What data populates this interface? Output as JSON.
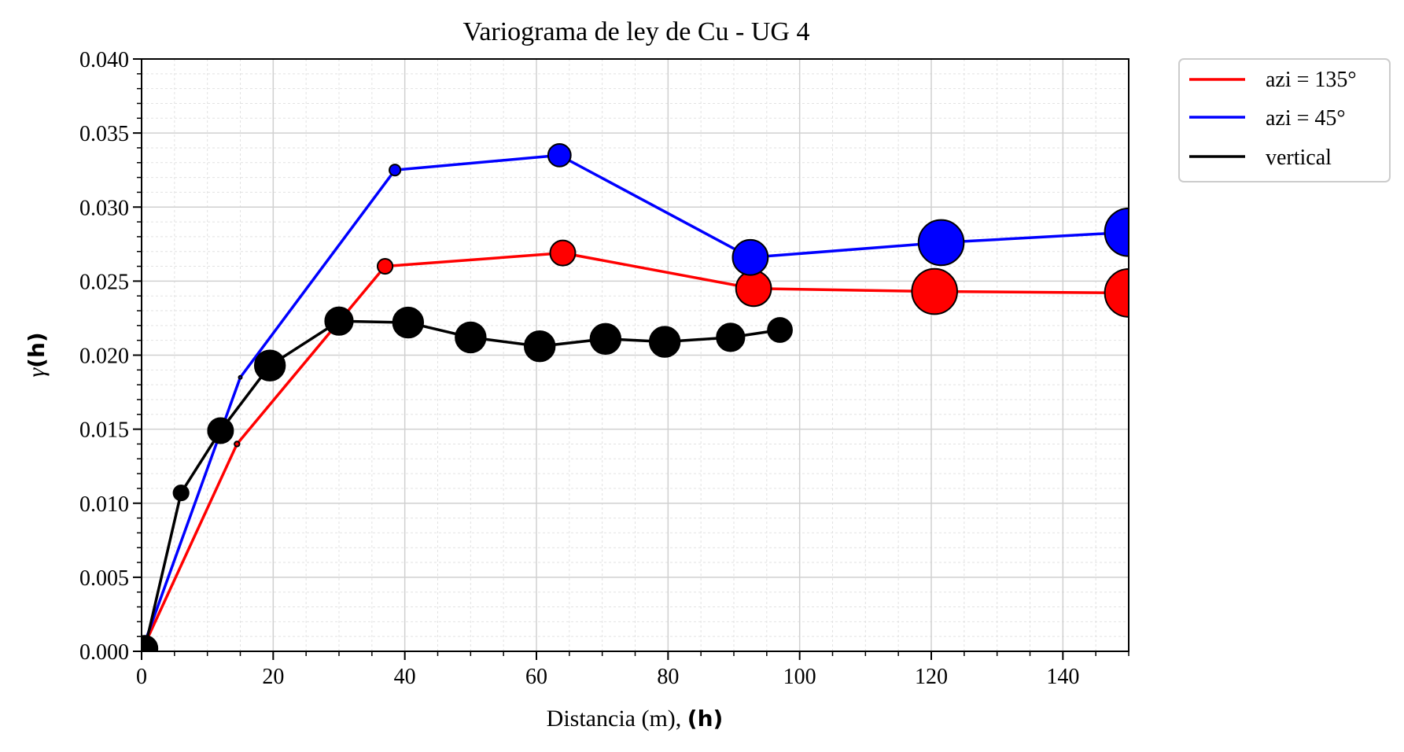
{
  "chart_data": {
    "type": "line",
    "title": "Variograma de ley de Cu - UG 4",
    "xlabel_text": "Distancia (m), ",
    "xlabel_bold": "(h)",
    "ylabel_italic": "γ",
    "ylabel_bold": "(h)",
    "xlim": [
      0,
      150
    ],
    "ylim": [
      0,
      0.04
    ],
    "x_ticks": [
      0,
      20,
      40,
      60,
      80,
      100,
      120,
      140
    ],
    "x_tick_labels": [
      "0",
      "20",
      "40",
      "60",
      "80",
      "100",
      "120",
      "140"
    ],
    "y_ticks": [
      0,
      0.005,
      0.01,
      0.015,
      0.02,
      0.025,
      0.03,
      0.035,
      0.04
    ],
    "y_tick_labels": [
      "0.000",
      "0.005",
      "0.010",
      "0.015",
      "0.020",
      "0.025",
      "0.030",
      "0.035",
      "0.040"
    ],
    "grid": true,
    "legend_position": "outside-right-top",
    "series": [
      {
        "name": "azi = 135°",
        "color": "#ff0000",
        "points": [
          {
            "x": 0,
            "y": 0.0,
            "n": 0
          },
          {
            "x": 14.5,
            "y": 0.014,
            "n": 1
          },
          {
            "x": 37,
            "y": 0.026,
            "n": 3
          },
          {
            "x": 64,
            "y": 0.0269,
            "n": 5
          },
          {
            "x": 93,
            "y": 0.0245,
            "n": 7
          },
          {
            "x": 120.5,
            "y": 0.0243,
            "n": 9
          },
          {
            "x": 150,
            "y": 0.0242,
            "n": 9.5
          }
        ]
      },
      {
        "name": "azi = 45°",
        "color": "#0000ff",
        "points": [
          {
            "x": 0,
            "y": 0.0,
            "n": 0
          },
          {
            "x": 15,
            "y": 0.0185,
            "n": 0.5
          },
          {
            "x": 38.5,
            "y": 0.0325,
            "n": 2.2
          },
          {
            "x": 63.5,
            "y": 0.0335,
            "n": 4.5
          },
          {
            "x": 92.5,
            "y": 0.0266,
            "n": 7
          },
          {
            "x": 121.5,
            "y": 0.0276,
            "n": 9
          },
          {
            "x": 150,
            "y": 0.0283,
            "n": 9.5
          }
        ]
      },
      {
        "name": "vertical",
        "color": "#000000",
        "points": [
          {
            "x": 0.5,
            "y": 0.0002,
            "n": 5
          },
          {
            "x": 6,
            "y": 0.0107,
            "n": 3
          },
          {
            "x": 12,
            "y": 0.0149,
            "n": 5
          },
          {
            "x": 19.5,
            "y": 0.0193,
            "n": 6
          },
          {
            "x": 30,
            "y": 0.0223,
            "n": 5.5
          },
          {
            "x": 40.5,
            "y": 0.0222,
            "n": 6
          },
          {
            "x": 50,
            "y": 0.0212,
            "n": 6
          },
          {
            "x": 60.5,
            "y": 0.0206,
            "n": 6
          },
          {
            "x": 70.5,
            "y": 0.0211,
            "n": 6
          },
          {
            "x": 79.5,
            "y": 0.0209,
            "n": 6
          },
          {
            "x": 89.5,
            "y": 0.0212,
            "n": 5.5
          },
          {
            "x": 97,
            "y": 0.0217,
            "n": 4.8
          }
        ]
      }
    ]
  }
}
